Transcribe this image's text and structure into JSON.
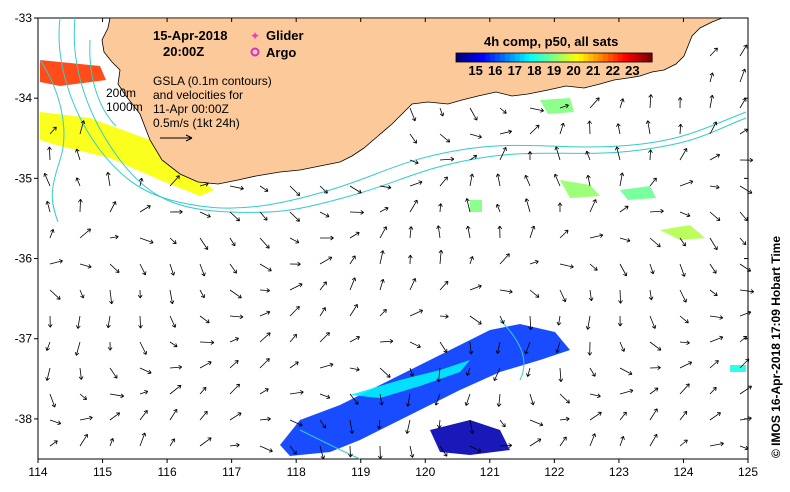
{
  "map": {
    "date_line": "15-Apr-2018",
    "time_line": "20:00Z",
    "depth_labels": [
      "200m",
      "1000m"
    ],
    "gsla_lines": [
      "GSLA (0.1m contours)",
      "and velocities for",
      "11-Apr 00:00Z",
      "0.5m/s (1kt 24h)"
    ],
    "legend": {
      "glider": "Glider",
      "argo": "Argo",
      "glider_color": "#ff33cc",
      "argo_color": "#cc33cc"
    },
    "colorbar": {
      "title": "4h comp, p50, all sats",
      "ticks": [
        "15",
        "16",
        "17",
        "18",
        "19",
        "20",
        "21",
        "22",
        "23"
      ],
      "min": 14,
      "max": 24
    },
    "credit": "© IMOS 16-Apr-2018 17:09 Hobart Time",
    "x_ticks": [
      "114",
      "115",
      "116",
      "117",
      "118",
      "119",
      "120",
      "121",
      "122",
      "123",
      "124",
      "125"
    ],
    "y_ticks": [
      "-33",
      "-34",
      "-35",
      "-36",
      "-37",
      "-38"
    ],
    "xlim": [
      114,
      125
    ],
    "ylim": [
      -38.5,
      -33
    ],
    "colors": {
      "land": "#fcc99a",
      "current": "#33cccc",
      "arrow": "#000000"
    }
  }
}
